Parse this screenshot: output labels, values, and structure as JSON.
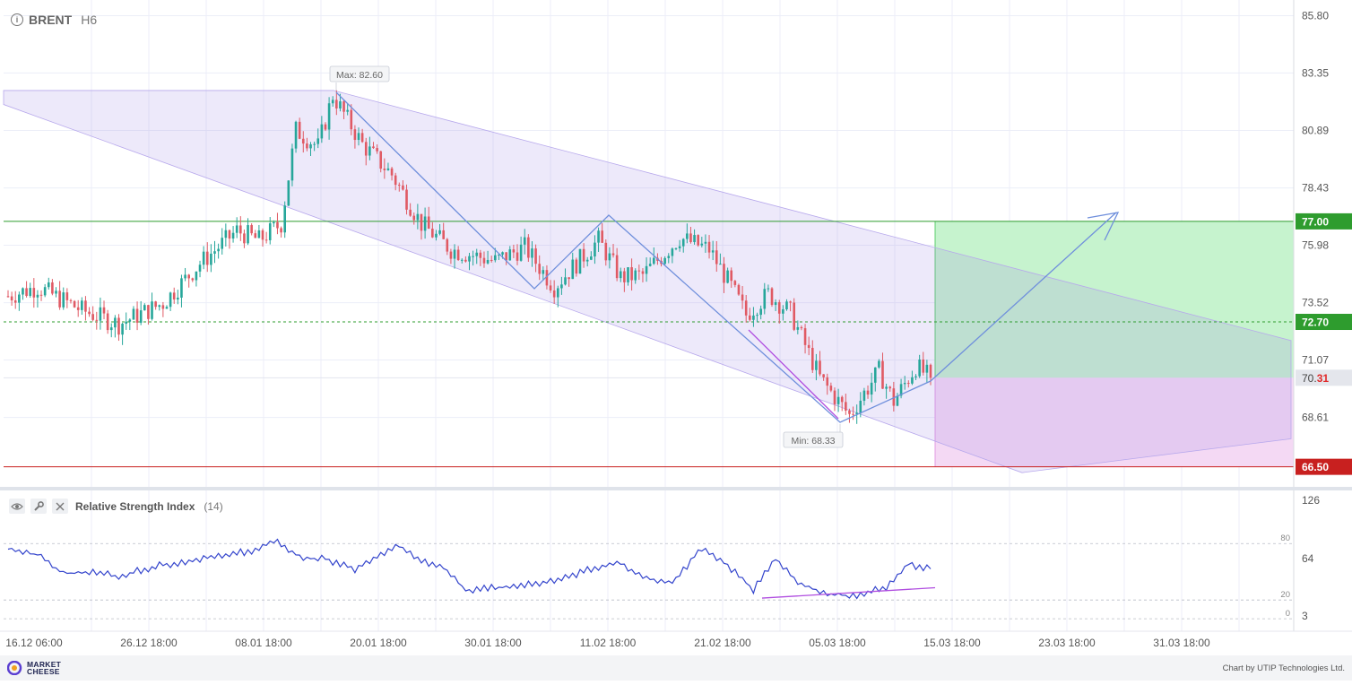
{
  "header": {
    "symbol": "BRENT",
    "timeframe": "H6",
    "info_icon": "info-icon"
  },
  "chart_data": {
    "type": "candlestick",
    "symbol": "BRENT",
    "timeframe": "H6",
    "y_axis_ticks": [
      "85.80",
      "83.35",
      "80.89",
      "78.43",
      "75.98",
      "73.52",
      "71.07",
      "68.61"
    ],
    "ylim": [
      66.2,
      86.3
    ],
    "x_axis_ticks": [
      "16.12 06:00",
      "26.12 18:00",
      "08.01 18:00",
      "20.01 18:00",
      "30.01 18:00",
      "11.02 18:00",
      "21.02 18:00",
      "05.03 18:00",
      "15.03 18:00",
      "23.03 18:00",
      "31.03 18:00"
    ],
    "grid": true,
    "colors": {
      "bull": "#26a69a",
      "bear": "#e05a64",
      "channel": "#9c85e6",
      "pattern_line": "#6f8fdc",
      "divergence": "#b04ee0"
    },
    "anchors": [
      {
        "i": 0,
        "close": 73.8
      },
      {
        "i": 8,
        "close": 74.2
      },
      {
        "i": 20,
        "close": 73.2
      },
      {
        "i": 30,
        "close": 72.6
      },
      {
        "i": 42,
        "close": 73.5
      },
      {
        "i": 52,
        "close": 75.2
      },
      {
        "i": 62,
        "close": 76.6
      },
      {
        "i": 68,
        "close": 76.2
      },
      {
        "i": 74,
        "close": 76.9
      },
      {
        "i": 78,
        "close": 80.9
      },
      {
        "i": 84,
        "close": 80.2
      },
      {
        "i": 88,
        "close": 82.4
      },
      {
        "i": 96,
        "close": 80.3
      },
      {
        "i": 104,
        "close": 79.0
      },
      {
        "i": 112,
        "close": 76.9
      },
      {
        "i": 120,
        "close": 75.8
      },
      {
        "i": 132,
        "close": 75.3
      },
      {
        "i": 140,
        "close": 75.9
      },
      {
        "i": 148,
        "close": 74.2
      },
      {
        "i": 160,
        "close": 76.2
      },
      {
        "i": 166,
        "close": 74.6
      },
      {
        "i": 172,
        "close": 74.7
      },
      {
        "i": 182,
        "close": 76.3
      },
      {
        "i": 190,
        "close": 75.8
      },
      {
        "i": 196,
        "close": 74.2
      },
      {
        "i": 200,
        "close": 73.0
      },
      {
        "i": 206,
        "close": 73.9
      },
      {
        "i": 212,
        "close": 73.1
      },
      {
        "i": 220,
        "close": 70.3
      },
      {
        "i": 228,
        "close": 68.7
      },
      {
        "i": 236,
        "close": 70.6
      },
      {
        "i": 240,
        "close": 69.3
      },
      {
        "i": 246,
        "close": 70.8
      },
      {
        "i": 250,
        "close": 70.3
      }
    ],
    "candle_count": 251,
    "max_label": "Max: 82.60",
    "min_label": "Min: 68.33",
    "levels": [
      {
        "value": 77.0,
        "label": "77.00",
        "color": "#2e9c2e",
        "style": "solid"
      },
      {
        "value": 72.7,
        "label": "72.70",
        "color": "#2e9c2e",
        "style": "dashed"
      },
      {
        "value": 66.5,
        "label": "66.50",
        "color": "#c8201f",
        "style": "solid"
      }
    ],
    "last_price": {
      "value": 70.31,
      "label_main": "70.",
      "label_accent": "31"
    },
    "rsi": {
      "name": "Relative Strength Index",
      "period": "(14)",
      "y_axis_ticks": [
        "126",
        "64",
        "3"
      ],
      "levels": [
        "80",
        "20",
        "0"
      ],
      "ylim": [
        3,
        126
      ],
      "anchors": [
        {
          "i": 0,
          "v": 74
        },
        {
          "i": 8,
          "v": 68
        },
        {
          "i": 15,
          "v": 48
        },
        {
          "i": 22,
          "v": 50
        },
        {
          "i": 30,
          "v": 45
        },
        {
          "i": 40,
          "v": 56
        },
        {
          "i": 52,
          "v": 63
        },
        {
          "i": 60,
          "v": 69
        },
        {
          "i": 66,
          "v": 72
        },
        {
          "i": 72,
          "v": 84
        },
        {
          "i": 80,
          "v": 64
        },
        {
          "i": 86,
          "v": 64
        },
        {
          "i": 94,
          "v": 52
        },
        {
          "i": 100,
          "v": 67
        },
        {
          "i": 106,
          "v": 78
        },
        {
          "i": 112,
          "v": 62
        },
        {
          "i": 118,
          "v": 54
        },
        {
          "i": 124,
          "v": 30
        },
        {
          "i": 132,
          "v": 33
        },
        {
          "i": 140,
          "v": 36
        },
        {
          "i": 150,
          "v": 42
        },
        {
          "i": 158,
          "v": 53
        },
        {
          "i": 166,
          "v": 59
        },
        {
          "i": 172,
          "v": 44
        },
        {
          "i": 180,
          "v": 38
        },
        {
          "i": 188,
          "v": 75
        },
        {
          "i": 194,
          "v": 60
        },
        {
          "i": 202,
          "v": 31
        },
        {
          "i": 208,
          "v": 64
        },
        {
          "i": 214,
          "v": 39
        },
        {
          "i": 222,
          "v": 26
        },
        {
          "i": 230,
          "v": 24
        },
        {
          "i": 238,
          "v": 34
        },
        {
          "i": 244,
          "v": 58
        },
        {
          "i": 250,
          "v": 53
        }
      ]
    }
  },
  "footer": {
    "brand_line1": "MARKET",
    "brand_line2": "CHEESE",
    "credit": "Chart by UTIP Technologies Ltd."
  }
}
